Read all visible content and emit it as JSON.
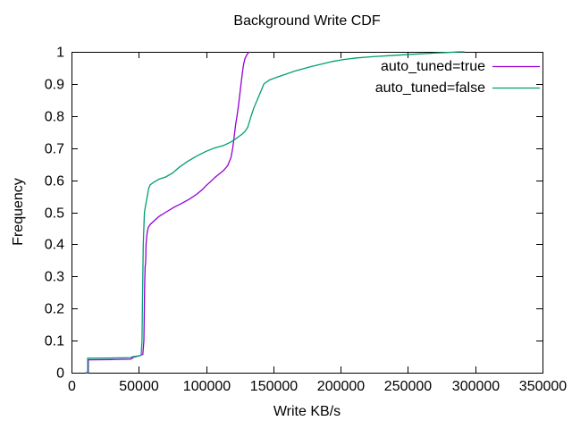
{
  "chart_data": {
    "type": "line",
    "title": "Background Write CDF",
    "xlabel": "Write KB/s",
    "ylabel": "Frequency",
    "xlim": [
      0,
      350000
    ],
    "ylim": [
      0,
      1
    ],
    "grid": false,
    "legend_position": "top-right-inside",
    "frame_color": "#000000",
    "x_ticks": [
      {
        "value": 0,
        "label": "0"
      },
      {
        "value": 50000,
        "label": "50000"
      },
      {
        "value": 100000,
        "label": "100000"
      },
      {
        "value": 150000,
        "label": "150000"
      },
      {
        "value": 200000,
        "label": "200000"
      },
      {
        "value": 250000,
        "label": "250000"
      },
      {
        "value": 300000,
        "label": "300000"
      },
      {
        "value": 350000,
        "label": "350000"
      }
    ],
    "y_ticks": [
      {
        "value": 0,
        "label": "0"
      },
      {
        "value": 0.1,
        "label": "0.1"
      },
      {
        "value": 0.2,
        "label": "0.2"
      },
      {
        "value": 0.3,
        "label": "0.3"
      },
      {
        "value": 0.4,
        "label": "0.4"
      },
      {
        "value": 0.5,
        "label": "0.5"
      },
      {
        "value": 0.6,
        "label": "0.6"
      },
      {
        "value": 0.7,
        "label": "0.7"
      },
      {
        "value": 0.8,
        "label": "0.8"
      },
      {
        "value": 0.9,
        "label": "0.9"
      },
      {
        "value": 1,
        "label": "1"
      }
    ],
    "series": [
      {
        "name": "auto_tuned=true",
        "color": "#9400d3",
        "points": [
          [
            10500,
            0
          ],
          [
            12500,
            0
          ],
          [
            12500,
            0.04
          ],
          [
            30000,
            0.041
          ],
          [
            44000,
            0.042
          ],
          [
            46000,
            0.048
          ],
          [
            50000,
            0.052
          ],
          [
            53000,
            0.057
          ],
          [
            53800,
            0.1
          ],
          [
            54100,
            0.2
          ],
          [
            54400,
            0.28
          ],
          [
            54700,
            0.33
          ],
          [
            55100,
            0.345
          ],
          [
            55400,
            0.4
          ],
          [
            56200,
            0.435
          ],
          [
            57000,
            0.452
          ],
          [
            58500,
            0.462
          ],
          [
            61000,
            0.472
          ],
          [
            65000,
            0.487
          ],
          [
            70000,
            0.5
          ],
          [
            76000,
            0.515
          ],
          [
            82000,
            0.528
          ],
          [
            88000,
            0.542
          ],
          [
            93000,
            0.556
          ],
          [
            97000,
            0.57
          ],
          [
            100000,
            0.583
          ],
          [
            104000,
            0.598
          ],
          [
            107000,
            0.61
          ],
          [
            110000,
            0.62
          ],
          [
            113000,
            0.63
          ],
          [
            116000,
            0.645
          ],
          [
            118500,
            0.67
          ],
          [
            119800,
            0.7
          ],
          [
            121000,
            0.74
          ],
          [
            122000,
            0.775
          ],
          [
            123000,
            0.8
          ],
          [
            124000,
            0.83
          ],
          [
            125000,
            0.865
          ],
          [
            126000,
            0.9
          ],
          [
            127000,
            0.935
          ],
          [
            128000,
            0.963
          ],
          [
            129000,
            0.98
          ],
          [
            130500,
            0.992
          ],
          [
            132000,
            1.0
          ]
        ]
      },
      {
        "name": "auto_tuned=false",
        "color": "#009e73",
        "points": [
          [
            10500,
            0
          ],
          [
            12000,
            0
          ],
          [
            12000,
            0.045
          ],
          [
            30000,
            0.046
          ],
          [
            44000,
            0.047
          ],
          [
            45500,
            0.05
          ],
          [
            50500,
            0.053
          ],
          [
            51800,
            0.055
          ],
          [
            52400,
            0.1
          ],
          [
            52800,
            0.24
          ],
          [
            53300,
            0.4
          ],
          [
            54200,
            0.5
          ],
          [
            55300,
            0.527
          ],
          [
            56300,
            0.55
          ],
          [
            57300,
            0.573
          ],
          [
            58300,
            0.585
          ],
          [
            61000,
            0.593
          ],
          [
            65000,
            0.603
          ],
          [
            70000,
            0.61
          ],
          [
            75000,
            0.622
          ],
          [
            80000,
            0.64
          ],
          [
            86000,
            0.658
          ],
          [
            93000,
            0.675
          ],
          [
            100000,
            0.69
          ],
          [
            106000,
            0.7
          ],
          [
            113000,
            0.708
          ],
          [
            118000,
            0.718
          ],
          [
            121000,
            0.726
          ],
          [
            124000,
            0.735
          ],
          [
            127000,
            0.744
          ],
          [
            129000,
            0.752
          ],
          [
            131000,
            0.765
          ],
          [
            133500,
            0.8
          ],
          [
            135500,
            0.825
          ],
          [
            138000,
            0.85
          ],
          [
            140500,
            0.875
          ],
          [
            143000,
            0.9
          ],
          [
            147000,
            0.912
          ],
          [
            152000,
            0.92
          ],
          [
            159000,
            0.93
          ],
          [
            166000,
            0.94
          ],
          [
            172000,
            0.947
          ],
          [
            178000,
            0.954
          ],
          [
            186000,
            0.962
          ],
          [
            194000,
            0.97
          ],
          [
            202000,
            0.976
          ],
          [
            212000,
            0.981
          ],
          [
            224000,
            0.985
          ],
          [
            236000,
            0.988
          ],
          [
            248000,
            0.991
          ],
          [
            260000,
            0.994
          ],
          [
            270000,
            0.996
          ],
          [
            280000,
            0.998
          ],
          [
            288000,
            1.0
          ],
          [
            292000,
            1.0
          ]
        ]
      }
    ]
  }
}
